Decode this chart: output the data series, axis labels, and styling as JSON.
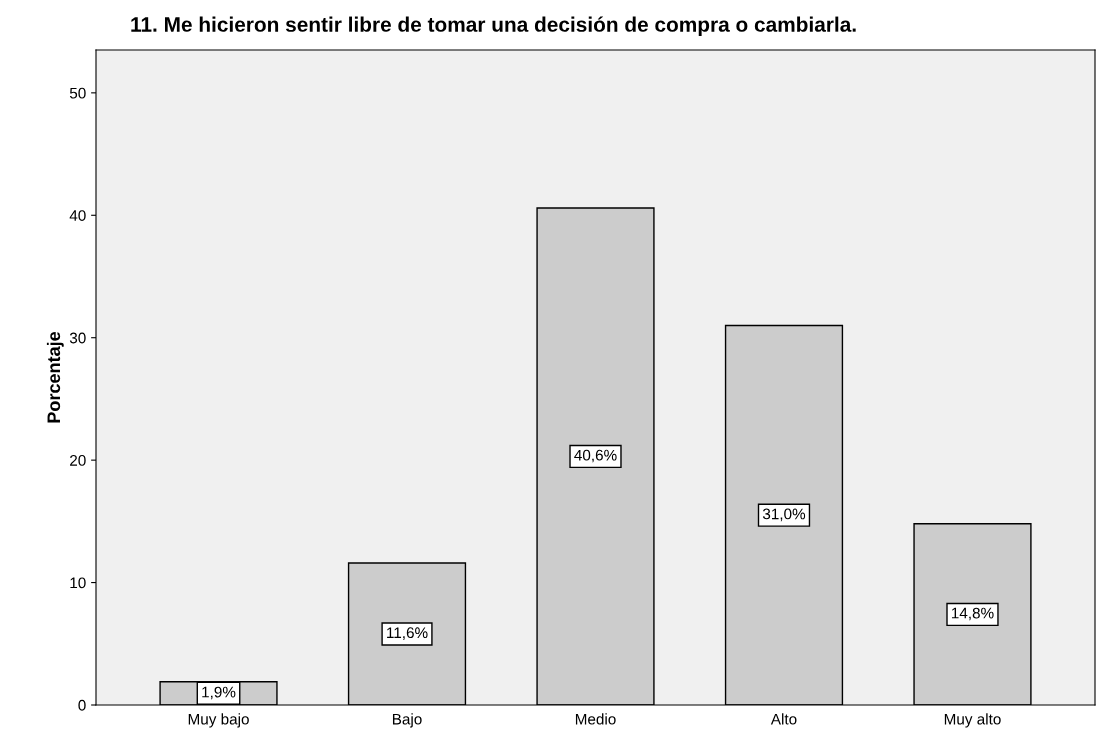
{
  "chart_data": {
    "type": "bar",
    "title": "11. Me hicieron sentir libre de tomar una decisión de compra o cambiarla.",
    "ylabel": "Porcentaje",
    "categories": [
      "Muy bajo",
      "Bajo",
      "Medio",
      "Alto",
      "Muy alto"
    ],
    "values": [
      1.9,
      11.6,
      40.6,
      31.0,
      14.8
    ],
    "value_labels": [
      "1,9%",
      "11,6%",
      "40,6%",
      "31,0%",
      "14,8%"
    ],
    "color": "#cccccc",
    "ylim": [
      0,
      53.5
    ],
    "yticks": [
      0,
      10,
      20,
      30,
      40,
      50
    ],
    "grid": false
  }
}
